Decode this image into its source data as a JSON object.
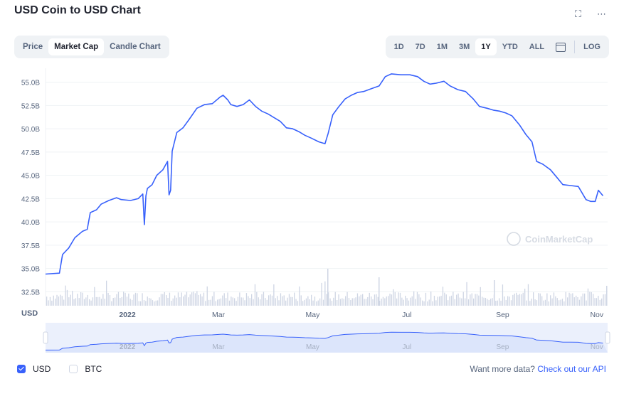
{
  "header": {
    "title": "USD Coin to USD Chart",
    "expand_icon": "expand-icon",
    "more_icon": "more-icon"
  },
  "tabs": [
    {
      "label": "Price",
      "active": false
    },
    {
      "label": "Market Cap",
      "active": true
    },
    {
      "label": "Candle Chart",
      "active": false
    }
  ],
  "ranges": [
    {
      "label": "1D",
      "active": false
    },
    {
      "label": "7D",
      "active": false
    },
    {
      "label": "1M",
      "active": false
    },
    {
      "label": "3M",
      "active": false
    },
    {
      "label": "1Y",
      "active": true
    },
    {
      "label": "YTD",
      "active": false
    },
    {
      "label": "ALL",
      "active": false
    }
  ],
  "log_label": "LOG",
  "watermark": "CoinMarketCap",
  "footer": {
    "usd_label": "USD",
    "btc_label": "BTC",
    "more_text": "Want more data?",
    "api_link": "Check out our API"
  },
  "colors": {
    "line": "#3861fb",
    "text": "#58667e",
    "volume": "#cfd6e4",
    "navigator_fill": "#e5ebfd"
  },
  "chart_data": {
    "type": "line",
    "title": "USD Coin to USD Chart",
    "ylabel": "USD",
    "y_tick_labels": [
      "32.5B",
      "35.0B",
      "37.5B",
      "40.0B",
      "42.5B",
      "45.0B",
      "47.5B",
      "50.0B",
      "52.5B",
      "55.0B"
    ],
    "y_ticks": [
      32.5,
      35.0,
      37.5,
      40.0,
      42.5,
      45.0,
      47.5,
      50.0,
      52.5,
      55.0
    ],
    "ylim": [
      31.0,
      56.5
    ],
    "x_tick_labels": [
      "2022",
      "Mar",
      "May",
      "Jul",
      "Sep",
      "Nov"
    ],
    "x_ticks": [
      "2022-01-01",
      "2022-03-01",
      "2022-05-01",
      "2022-07-01",
      "2022-09-01",
      "2022-11-01"
    ],
    "xlim": [
      "2021-11-09",
      "2022-11-08"
    ],
    "grid": true,
    "series": [
      {
        "values": [
          [
            "2021-11-09",
            34.4
          ],
          [
            "2021-11-18",
            34.5
          ],
          [
            "2021-11-20",
            36.5
          ],
          [
            "2021-11-24",
            37.2
          ],
          [
            "2021-11-28",
            38.3
          ],
          [
            "2021-12-03",
            39.0
          ],
          [
            "2021-12-06",
            39.2
          ],
          [
            "2021-12-08",
            41.0
          ],
          [
            "2021-12-12",
            41.3
          ],
          [
            "2021-12-15",
            41.9
          ],
          [
            "2021-12-20",
            42.3
          ],
          [
            "2021-12-25",
            42.6
          ],
          [
            "2021-12-28",
            42.4
          ],
          [
            "2022-01-03",
            42.3
          ],
          [
            "2022-01-08",
            42.5
          ],
          [
            "2022-01-11",
            43.0
          ],
          [
            "2022-01-12",
            39.7
          ],
          [
            "2022-01-13",
            42.8
          ],
          [
            "2022-01-14",
            43.6
          ],
          [
            "2022-01-17",
            44.0
          ],
          [
            "2022-01-20",
            45.0
          ],
          [
            "2022-01-24",
            45.6
          ],
          [
            "2022-01-27",
            46.5
          ],
          [
            "2022-01-28",
            42.9
          ],
          [
            "2022-01-29",
            43.4
          ],
          [
            "2022-01-30",
            47.6
          ],
          [
            "2022-02-02",
            49.6
          ],
          [
            "2022-02-06",
            50.1
          ],
          [
            "2022-02-10",
            51.0
          ],
          [
            "2022-02-15",
            52.2
          ],
          [
            "2022-02-20",
            52.6
          ],
          [
            "2022-02-25",
            52.7
          ],
          [
            "2022-03-02",
            53.4
          ],
          [
            "2022-03-04",
            53.6
          ],
          [
            "2022-03-07",
            53.1
          ],
          [
            "2022-03-09",
            52.6
          ],
          [
            "2022-03-13",
            52.4
          ],
          [
            "2022-03-17",
            52.6
          ],
          [
            "2022-03-21",
            53.1
          ],
          [
            "2022-03-25",
            52.4
          ],
          [
            "2022-03-29",
            51.9
          ],
          [
            "2022-04-02",
            51.6
          ],
          [
            "2022-04-06",
            51.2
          ],
          [
            "2022-04-10",
            50.8
          ],
          [
            "2022-04-14",
            50.1
          ],
          [
            "2022-04-18",
            50.0
          ],
          [
            "2022-04-22",
            49.7
          ],
          [
            "2022-04-26",
            49.3
          ],
          [
            "2022-04-30",
            49.0
          ],
          [
            "2022-05-05",
            48.6
          ],
          [
            "2022-05-09",
            48.4
          ],
          [
            "2022-05-11",
            49.5
          ],
          [
            "2022-05-14",
            51.5
          ],
          [
            "2022-05-18",
            52.4
          ],
          [
            "2022-05-22",
            53.2
          ],
          [
            "2022-05-26",
            53.6
          ],
          [
            "2022-05-30",
            53.9
          ],
          [
            "2022-06-03",
            54.0
          ],
          [
            "2022-06-08",
            54.3
          ],
          [
            "2022-06-13",
            54.6
          ],
          [
            "2022-06-17",
            55.6
          ],
          [
            "2022-06-21",
            55.9
          ],
          [
            "2022-06-27",
            55.8
          ],
          [
            "2022-07-03",
            55.8
          ],
          [
            "2022-07-08",
            55.6
          ],
          [
            "2022-07-12",
            55.1
          ],
          [
            "2022-07-16",
            54.8
          ],
          [
            "2022-07-20",
            54.9
          ],
          [
            "2022-07-25",
            55.1
          ],
          [
            "2022-07-29",
            54.6
          ],
          [
            "2022-08-03",
            54.2
          ],
          [
            "2022-08-08",
            54.0
          ],
          [
            "2022-08-13",
            53.2
          ],
          [
            "2022-08-17",
            52.4
          ],
          [
            "2022-08-22",
            52.2
          ],
          [
            "2022-08-26",
            52.0
          ],
          [
            "2022-08-30",
            51.9
          ],
          [
            "2022-09-03",
            51.7
          ],
          [
            "2022-09-07",
            51.4
          ],
          [
            "2022-09-12",
            50.4
          ],
          [
            "2022-09-16",
            49.4
          ],
          [
            "2022-09-20",
            48.6
          ],
          [
            "2022-09-23",
            46.5
          ],
          [
            "2022-09-27",
            46.2
          ],
          [
            "2022-10-02",
            45.6
          ],
          [
            "2022-10-06",
            44.8
          ],
          [
            "2022-10-10",
            44.0
          ],
          [
            "2022-10-15",
            43.9
          ],
          [
            "2022-10-20",
            43.8
          ],
          [
            "2022-10-25",
            42.4
          ],
          [
            "2022-10-28",
            42.2
          ],
          [
            "2022-10-31",
            42.2
          ],
          [
            "2022-11-02",
            43.4
          ],
          [
            "2022-11-05",
            42.8
          ]
        ]
      }
    ]
  }
}
